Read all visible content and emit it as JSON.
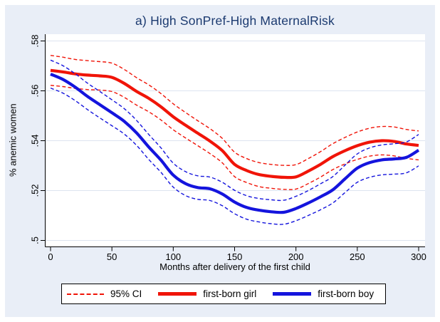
{
  "title": "a) High SonPref-High MaternalRisk",
  "colors": {
    "girl_line": "#f01408",
    "boy_line": "#1414dd",
    "title_text": "#1b3a70",
    "axis": "#000000",
    "gridline": "#dde4f0",
    "plot_background": "#ffffff",
    "outer_background": "#e9eef7",
    "legend_background": "#ffffff"
  },
  "legend": {
    "items": [
      {
        "label": "95% CI",
        "sample": "red-dashed-line"
      },
      {
        "label": "first-born girl",
        "sample": "red-solid-line"
      },
      {
        "label": "first-born boy",
        "sample": "blue-solid-line"
      }
    ]
  },
  "chart_data": {
    "type": "line",
    "title": "a) High SonPref-High MaternalRisk",
    "xlabel": "Months after delivery of the first child",
    "ylabel": "% anemic women",
    "xlim": [
      0,
      300
    ],
    "ylim": [
      0.5,
      0.58
    ],
    "x_ticks": [
      0,
      50,
      100,
      150,
      200,
      250,
      300
    ],
    "y_ticks": [
      0.5,
      0.52,
      0.54,
      0.56,
      0.58
    ],
    "y_tick_labels": [
      ".5",
      ".52",
      ".54",
      ".56",
      ".58"
    ],
    "grid": true,
    "legend_position": "bottom",
    "x": [
      0,
      10,
      20,
      30,
      40,
      50,
      60,
      70,
      80,
      90,
      100,
      110,
      120,
      130,
      140,
      150,
      160,
      170,
      180,
      190,
      200,
      210,
      220,
      230,
      240,
      250,
      260,
      270,
      280,
      290,
      300
    ],
    "series": [
      {
        "name": "95% CI first-born girl (upper)",
        "style": "dashed",
        "color": "#f01408",
        "width": 1.4,
        "values": [
          0.5742,
          0.5735,
          0.5726,
          0.5721,
          0.5717,
          0.5711,
          0.5686,
          0.5653,
          0.5624,
          0.5589,
          0.5548,
          0.5513,
          0.548,
          0.5448,
          0.5409,
          0.5354,
          0.5328,
          0.5312,
          0.5305,
          0.5301,
          0.5304,
          0.5328,
          0.5356,
          0.5388,
          0.5413,
          0.5435,
          0.545,
          0.5457,
          0.5455,
          0.5445,
          0.5439
        ]
      },
      {
        "name": "95% CI first-born girl (lower)",
        "style": "dashed",
        "color": "#f01408",
        "width": 1.4,
        "values": [
          0.5622,
          0.5617,
          0.561,
          0.5605,
          0.5603,
          0.5597,
          0.5574,
          0.5543,
          0.5516,
          0.5483,
          0.5444,
          0.5411,
          0.538,
          0.5348,
          0.5311,
          0.5256,
          0.5232,
          0.5216,
          0.5209,
          0.5205,
          0.5206,
          0.5228,
          0.5254,
          0.5284,
          0.5307,
          0.5325,
          0.5338,
          0.5343,
          0.5339,
          0.5329,
          0.5323
        ]
      },
      {
        "name": "first-born girl",
        "style": "solid",
        "color": "#f01408",
        "width": 4.2,
        "values": [
          0.5682,
          0.5676,
          0.5668,
          0.5663,
          0.566,
          0.5654,
          0.563,
          0.5598,
          0.557,
          0.5536,
          0.5496,
          0.5462,
          0.543,
          0.5398,
          0.536,
          0.5305,
          0.528,
          0.5264,
          0.5257,
          0.5253,
          0.5255,
          0.5278,
          0.5305,
          0.5336,
          0.536,
          0.538,
          0.5394,
          0.54,
          0.5397,
          0.5387,
          0.5381
        ]
      },
      {
        "name": "95% CI first-born boy (upper)",
        "style": "dashed",
        "color": "#1414dd",
        "width": 1.4,
        "values": [
          0.5723,
          0.5701,
          0.5669,
          0.5631,
          0.5598,
          0.5564,
          0.5529,
          0.5482,
          0.5425,
          0.5371,
          0.531,
          0.5276,
          0.5259,
          0.5254,
          0.5233,
          0.5201,
          0.5179,
          0.5168,
          0.5163,
          0.5161,
          0.5177,
          0.52,
          0.5227,
          0.5256,
          0.5302,
          0.5347,
          0.5371,
          0.5383,
          0.5388,
          0.5395,
          0.5425
        ]
      },
      {
        "name": "95% CI first-born boy (lower)",
        "style": "dashed",
        "color": "#1414dd",
        "width": 1.4,
        "values": [
          0.5611,
          0.5591,
          0.5561,
          0.5525,
          0.5492,
          0.546,
          0.5427,
          0.5382,
          0.5325,
          0.5273,
          0.5214,
          0.518,
          0.5165,
          0.516,
          0.5139,
          0.5107,
          0.5085,
          0.5074,
          0.5067,
          0.5065,
          0.5079,
          0.51,
          0.5123,
          0.515,
          0.5192,
          0.5233,
          0.5253,
          0.5263,
          0.5266,
          0.5271,
          0.5299
        ]
      },
      {
        "name": "first-born boy",
        "style": "solid",
        "color": "#1414dd",
        "width": 4.2,
        "values": [
          0.5667,
          0.5646,
          0.5615,
          0.5578,
          0.5545,
          0.5512,
          0.5478,
          0.5432,
          0.5375,
          0.5322,
          0.5262,
          0.5228,
          0.5212,
          0.5207,
          0.5186,
          0.5154,
          0.5132,
          0.5121,
          0.5115,
          0.5113,
          0.5128,
          0.515,
          0.5175,
          0.5203,
          0.5247,
          0.529,
          0.5312,
          0.5323,
          0.5327,
          0.5333,
          0.5362
        ]
      }
    ]
  }
}
